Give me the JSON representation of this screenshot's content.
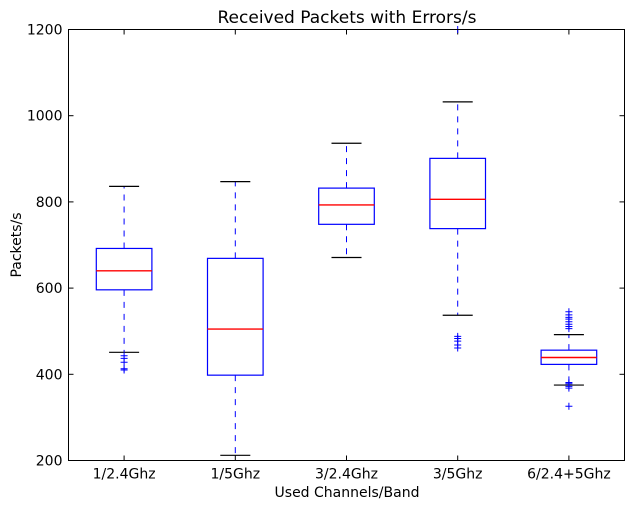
{
  "chart_data": {
    "type": "box",
    "title": "Received Packets with Errors/s",
    "xlabel": "Used Channels/Band",
    "ylabel": "Packets/s",
    "ylim": [
      200,
      1200
    ],
    "yticks": [
      200,
      400,
      600,
      800,
      1000,
      1200
    ],
    "grid": false,
    "colors": {
      "box": "#0000ff",
      "median": "#ff0000",
      "cap": "#000000",
      "whisker": "#0000ff",
      "outlier": "#0000ff"
    },
    "categories": [
      "1/2.4Ghz",
      "1/5Ghz",
      "3/2.4Ghz",
      "3/5Ghz",
      "6/2.4+5Ghz"
    ],
    "boxes": [
      {
        "category": "1/2.4Ghz",
        "whisker_low": 451,
        "q1": 596,
        "median": 640,
        "q3": 692,
        "whisker_high": 836,
        "outliers": [
          410,
          413,
          428,
          437,
          443
        ]
      },
      {
        "category": "1/5Ghz",
        "whisker_low": 212,
        "q1": 398,
        "median": 505,
        "q3": 669,
        "whisker_high": 847,
        "outliers": []
      },
      {
        "category": "3/2.4Ghz",
        "whisker_low": 671,
        "q1": 748,
        "median": 793,
        "q3": 832,
        "whisker_high": 936,
        "outliers": []
      },
      {
        "category": "3/5Ghz",
        "whisker_low": 537,
        "q1": 738,
        "median": 806,
        "q3": 901,
        "whisker_high": 1032,
        "outliers": [
          461,
          468,
          477,
          483,
          488,
          1200
        ]
      },
      {
        "category": "6/2.4+5Ghz",
        "whisker_low": 375,
        "q1": 423,
        "median": 439,
        "q3": 456,
        "whisker_high": 492,
        "outliers": [
          326,
          368,
          372,
          378,
          381,
          506,
          511,
          516,
          522,
          528,
          532,
          538,
          545
        ]
      }
    ]
  }
}
